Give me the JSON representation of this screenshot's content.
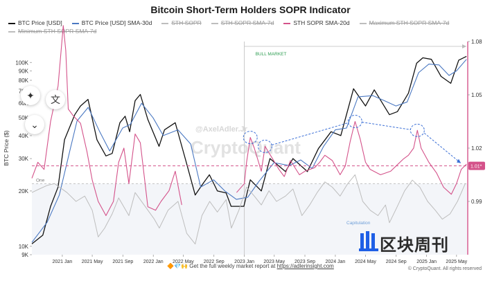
{
  "title": "Bitcoin Short-Term Holders SOPR Indicator",
  "legend": [
    {
      "label": "BTC Price [USD]",
      "color": "#111111",
      "active": true
    },
    {
      "label": "BTC Price [USD] SMA-30d",
      "color": "#4a78c2",
      "active": true
    },
    {
      "label": "STH SOPR",
      "color": "#bdbdbd",
      "active": false
    },
    {
      "label": "STH SOPR SMA-7d",
      "color": "#bdbdbd",
      "active": false
    },
    {
      "label": "STH SOPR SMA-20d",
      "color": "#d4528a",
      "active": true
    },
    {
      "label": "Maximum STH SOPR SMA-7d",
      "color": "#bdbdbd",
      "active": false
    },
    {
      "label": "Minimum STH SOPR SMA-7d",
      "color": "#bdbdbd",
      "active": false
    }
  ],
  "annotations": {
    "bull_market": "BULL MARKET",
    "capitulation": "Capitulation",
    "one_label": "One",
    "threshold_badge": "1.01*",
    "watermark_handle": "@AxelAdler.Jr",
    "watermark_brand": "CryptoQuant"
  },
  "footer": {
    "emoji": "🔶💎🙌",
    "text": "Get the full weekly market report at",
    "link": "https://adlerinsight.com"
  },
  "copyright": {
    "line1": "© CryptoQuant. All rights reserved"
  },
  "brand": {
    "name": "区块周刊"
  },
  "chart_data": {
    "type": "line",
    "title": "Bitcoin Short-Term Holders SOPR Indicator",
    "ylabel": "BTC Price ($)",
    "y_scale": "log",
    "ylim": [
      9000,
      130000
    ],
    "y_ticks": [
      9000,
      10000,
      20000,
      30000,
      40000,
      50000,
      60000,
      70000,
      80000,
      90000,
      100000
    ],
    "y_tick_labels": [
      "9K",
      "10K",
      "20K",
      "30K",
      "40K",
      "50K",
      "60K",
      "70K",
      "80K",
      "90K",
      "100K"
    ],
    "y2lim": [
      0.96,
      1.08
    ],
    "y2_ticks": [
      0.99,
      1.02,
      1.05,
      1.08
    ],
    "y2_tick_labels": [
      "0.99",
      "1.02",
      "1.05",
      "1.08"
    ],
    "xlim": [
      "2020-09-01",
      "2025-06-15"
    ],
    "x_ticks": [
      "2021-01-01",
      "2021-05-01",
      "2021-09-01",
      "2022-01-01",
      "2022-05-01",
      "2022-09-01",
      "2023-01-01",
      "2023-05-01",
      "2023-09-01",
      "2024-01-01",
      "2024-05-01",
      "2024-09-01",
      "2025-01-01",
      "2025-05-01"
    ],
    "x_tick_labels": [
      "2021 Jan",
      "2021 May",
      "2021 Sep",
      "2022 Jan",
      "2022 May",
      "2022 Sep",
      "2023 Jan",
      "2023 May",
      "2023 Sep",
      "2024 Jan",
      "2024 May",
      "2024 Sep",
      "2025 Jan",
      "2025 May"
    ],
    "threshold": 1.01,
    "bull_market_start": "2023-01-01",
    "series": [
      {
        "name": "BTC Price [USD]",
        "axis": "left",
        "color": "#111111",
        "x": [
          "2020-09-01",
          "2020-10-15",
          "2020-11-15",
          "2020-12-15",
          "2021-01-10",
          "2021-02-20",
          "2021-03-15",
          "2021-04-14",
          "2021-05-20",
          "2021-06-25",
          "2021-07-20",
          "2021-08-20",
          "2021-09-10",
          "2021-09-28",
          "2021-10-20",
          "2021-11-10",
          "2021-12-10",
          "2022-01-24",
          "2022-02-15",
          "2022-03-30",
          "2022-05-12",
          "2022-06-18",
          "2022-07-20",
          "2022-08-14",
          "2022-09-15",
          "2022-10-20",
          "2022-11-09",
          "2022-12-30",
          "2023-01-25",
          "2023-03-10",
          "2023-04-14",
          "2023-06-15",
          "2023-07-15",
          "2023-09-11",
          "2023-10-25",
          "2023-12-15",
          "2024-01-23",
          "2024-03-14",
          "2024-05-01",
          "2024-06-05",
          "2024-08-05",
          "2024-09-06",
          "2024-10-20",
          "2024-11-22",
          "2024-12-17",
          "2025-01-20",
          "2025-02-28",
          "2025-04-08",
          "2025-05-10",
          "2025-06-10"
        ],
        "y": [
          10300,
          11500,
          16500,
          21000,
          38000,
          52000,
          58000,
          63000,
          38000,
          31000,
          32000,
          47000,
          51000,
          42000,
          62000,
          67000,
          49000,
          35000,
          43000,
          47000,
          29000,
          19000,
          22000,
          24500,
          20000,
          19500,
          16500,
          16500,
          23000,
          20000,
          30000,
          25500,
          30000,
          25500,
          34000,
          42000,
          40000,
          72000,
          58000,
          71000,
          52000,
          54000,
          68000,
          99000,
          106000,
          104000,
          84000,
          77000,
          103000,
          108000
        ]
      },
      {
        "name": "BTC Price [USD] SMA-30d",
        "axis": "left",
        "color": "#4a78c2",
        "x": [
          "2020-09-01",
          "2020-11-01",
          "2020-12-20",
          "2021-01-31",
          "2021-03-01",
          "2021-04-15",
          "2021-05-31",
          "2021-07-10",
          "2021-08-31",
          "2021-10-01",
          "2021-11-15",
          "2021-12-31",
          "2022-02-10",
          "2022-04-10",
          "2022-05-31",
          "2022-07-10",
          "2022-08-31",
          "2022-10-15",
          "2022-11-30",
          "2023-01-15",
          "2023-02-28",
          "2023-04-30",
          "2023-06-30",
          "2023-08-15",
          "2023-09-30",
          "2023-11-15",
          "2024-01-01",
          "2024-02-15",
          "2024-04-01",
          "2024-05-31",
          "2024-07-15",
          "2024-08-31",
          "2024-10-15",
          "2024-11-30",
          "2025-01-10",
          "2025-02-20",
          "2025-04-01",
          "2025-05-01",
          "2025-06-10"
        ],
        "y": [
          10500,
          13500,
          19000,
          33000,
          48000,
          57000,
          42000,
          33000,
          44000,
          46000,
          60000,
          50000,
          40000,
          43000,
          36000,
          21000,
          23000,
          20000,
          18000,
          18500,
          22500,
          28500,
          27500,
          29500,
          26500,
          35000,
          43000,
          44000,
          65000,
          66000,
          62000,
          58000,
          61000,
          88000,
          98000,
          97000,
          85000,
          90000,
          104000
        ]
      },
      {
        "name": "STH SOPR SMA-20d",
        "axis": "right",
        "color": "#d4528a",
        "x": [
          "2020-09-01",
          "2020-09-25",
          "2020-10-20",
          "2020-11-15",
          "2020-12-15",
          "2021-01-05",
          "2021-01-15",
          "2021-01-25",
          "2021-02-15",
          "2021-03-15",
          "2021-04-10",
          "2021-05-01",
          "2021-05-25",
          "2021-06-25",
          "2021-07-25",
          "2021-08-15",
          "2021-09-05",
          "2021-09-25",
          "2021-10-20",
          "2021-11-10",
          "2021-12-10",
          "2022-01-10",
          "2022-02-01",
          "2022-03-05",
          "2022-03-30",
          "2022-04-25"
        ],
        "y": [
          1.003,
          1.012,
          1.008,
          1.035,
          1.055,
          1.089,
          1.075,
          1.042,
          1.038,
          1.034,
          1.018,
          1.002,
          0.99,
          0.982,
          0.99,
          1.012,
          1.02,
          1.0,
          1.028,
          1.023,
          0.987,
          0.985,
          0.99,
          0.996,
          1.007,
          0.988
        ]
      },
      {
        "name": "STH SOPR SMA-20d",
        "axis": "right",
        "color": "#d4528a",
        "x": [
          "2022-12-01",
          "2023-01-01",
          "2023-01-10",
          "2023-01-25",
          "2023-02-10",
          "2023-03-10",
          "2023-03-25",
          "2023-04-20",
          "2023-05-20",
          "2023-06-10",
          "2023-07-05",
          "2023-08-10",
          "2023-09-01",
          "2023-10-10",
          "2023-10-30",
          "2023-11-20",
          "2023-12-20",
          "2024-01-20",
          "2024-02-10",
          "2024-03-01",
          "2024-03-20",
          "2024-04-10",
          "2024-05-01",
          "2024-05-20",
          "2024-06-30",
          "2024-08-10",
          "2024-09-01",
          "2024-10-01",
          "2024-10-20",
          "2024-11-10",
          "2024-11-25",
          "2024-12-10",
          "2025-01-10",
          "2025-02-10",
          "2025-03-10",
          "2025-04-10",
          "2025-05-01",
          "2025-05-20",
          "2025-06-10"
        ],
        "y": [
          0.995,
          1.0,
          1.012,
          1.026,
          1.02,
          1.007,
          1.021,
          1.015,
          1.008,
          1.004,
          1.013,
          1.005,
          1.007,
          1.009,
          1.012,
          1.016,
          1.013,
          1.005,
          1.01,
          1.024,
          1.035,
          1.025,
          1.012,
          1.008,
          1.005,
          1.007,
          1.01,
          1.014,
          1.016,
          1.02,
          1.03,
          1.02,
          1.012,
          1.006,
          0.998,
          0.994,
          1.0,
          1.008,
          1.011
        ]
      },
      {
        "name": "STH SOPR (min band)",
        "axis": "right",
        "color": "#bdbdbd",
        "x": [
          "2020-09-01",
          "2020-10-01",
          "2020-11-01",
          "2020-12-01",
          "2021-01-20",
          "2021-02-25",
          "2021-04-01",
          "2021-05-01",
          "2021-05-25",
          "2021-06-20",
          "2021-07-20",
          "2021-08-15",
          "2021-09-25",
          "2021-10-20",
          "2021-11-25",
          "2022-01-05",
          "2022-01-25",
          "2022-03-01",
          "2022-04-10",
          "2022-05-15",
          "2022-06-18",
          "2022-07-15",
          "2022-08-15",
          "2022-09-15",
          "2022-10-20",
          "2022-11-10",
          "2022-12-10",
          "2023-01-10",
          "2023-02-10",
          "2023-03-10",
          "2023-04-10",
          "2023-05-10",
          "2023-06-15",
          "2023-07-15",
          "2023-08-20",
          "2023-09-20",
          "2023-10-20",
          "2023-11-20",
          "2023-12-20",
          "2024-01-20",
          "2024-02-20",
          "2024-03-20",
          "2024-04-20",
          "2024-05-20",
          "2024-06-20",
          "2024-07-20",
          "2024-08-05",
          "2024-09-05",
          "2024-10-05",
          "2024-11-05",
          "2024-12-05",
          "2025-01-05",
          "2025-02-05",
          "2025-03-05",
          "2025-04-05",
          "2025-05-05",
          "2025-06-05"
        ],
        "y": [
          0.995,
          0.997,
          0.999,
          1.0,
          0.995,
          0.99,
          0.993,
          0.985,
          0.97,
          0.975,
          0.983,
          0.992,
          0.982,
          0.995,
          0.988,
          0.98,
          0.975,
          0.985,
          0.99,
          0.972,
          0.966,
          0.982,
          0.99,
          0.984,
          0.991,
          0.975,
          0.985,
          0.998,
          0.993,
          0.988,
          0.996,
          0.99,
          0.993,
          0.997,
          0.982,
          0.988,
          0.995,
          1.001,
          0.998,
          0.993,
          1.0,
          1.005,
          0.99,
          0.985,
          0.982,
          0.988,
          0.978,
          0.987,
          0.996,
          1.002,
          0.998,
          0.99,
          0.985,
          0.98,
          0.983,
          0.99,
          1.0
        ]
      }
    ]
  }
}
